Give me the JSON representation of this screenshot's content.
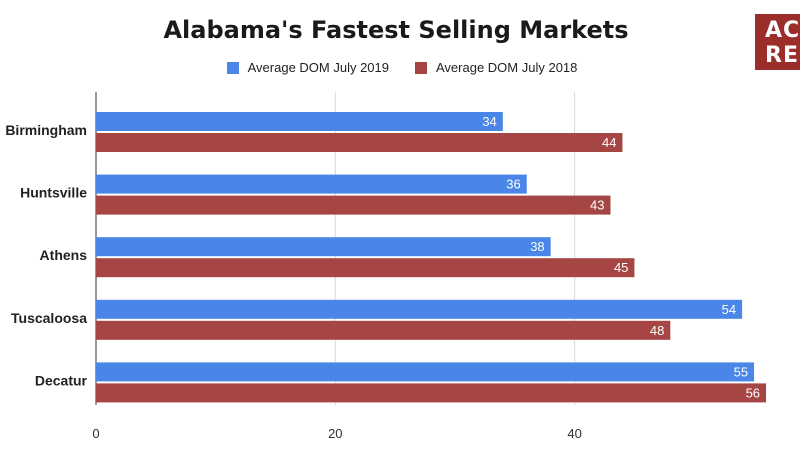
{
  "logo": {
    "line1": "AC",
    "line2": "RE"
  },
  "colors": {
    "series_2019": "#4a86e8",
    "series_2018": "#a64644",
    "grid": "#d9d9d9",
    "axis": "#333333"
  },
  "chart_data": {
    "type": "bar",
    "orientation": "horizontal",
    "title": "Alabama's Fastest Selling Markets",
    "categories": [
      "Birmingham",
      "Huntsville",
      "Athens",
      "Tuscaloosa",
      "Decatur"
    ],
    "series": [
      {
        "name": "Average DOM July 2019",
        "values": [
          34,
          36,
          38,
          54,
          55
        ]
      },
      {
        "name": "Average DOM July 2018",
        "values": [
          44,
          43,
          45,
          48,
          56
        ]
      }
    ],
    "xlim": [
      0,
      57
    ],
    "xticks": [
      0,
      20,
      40
    ],
    "xlabel": "",
    "ylabel": "",
    "grid": true,
    "legend_position": "top"
  }
}
